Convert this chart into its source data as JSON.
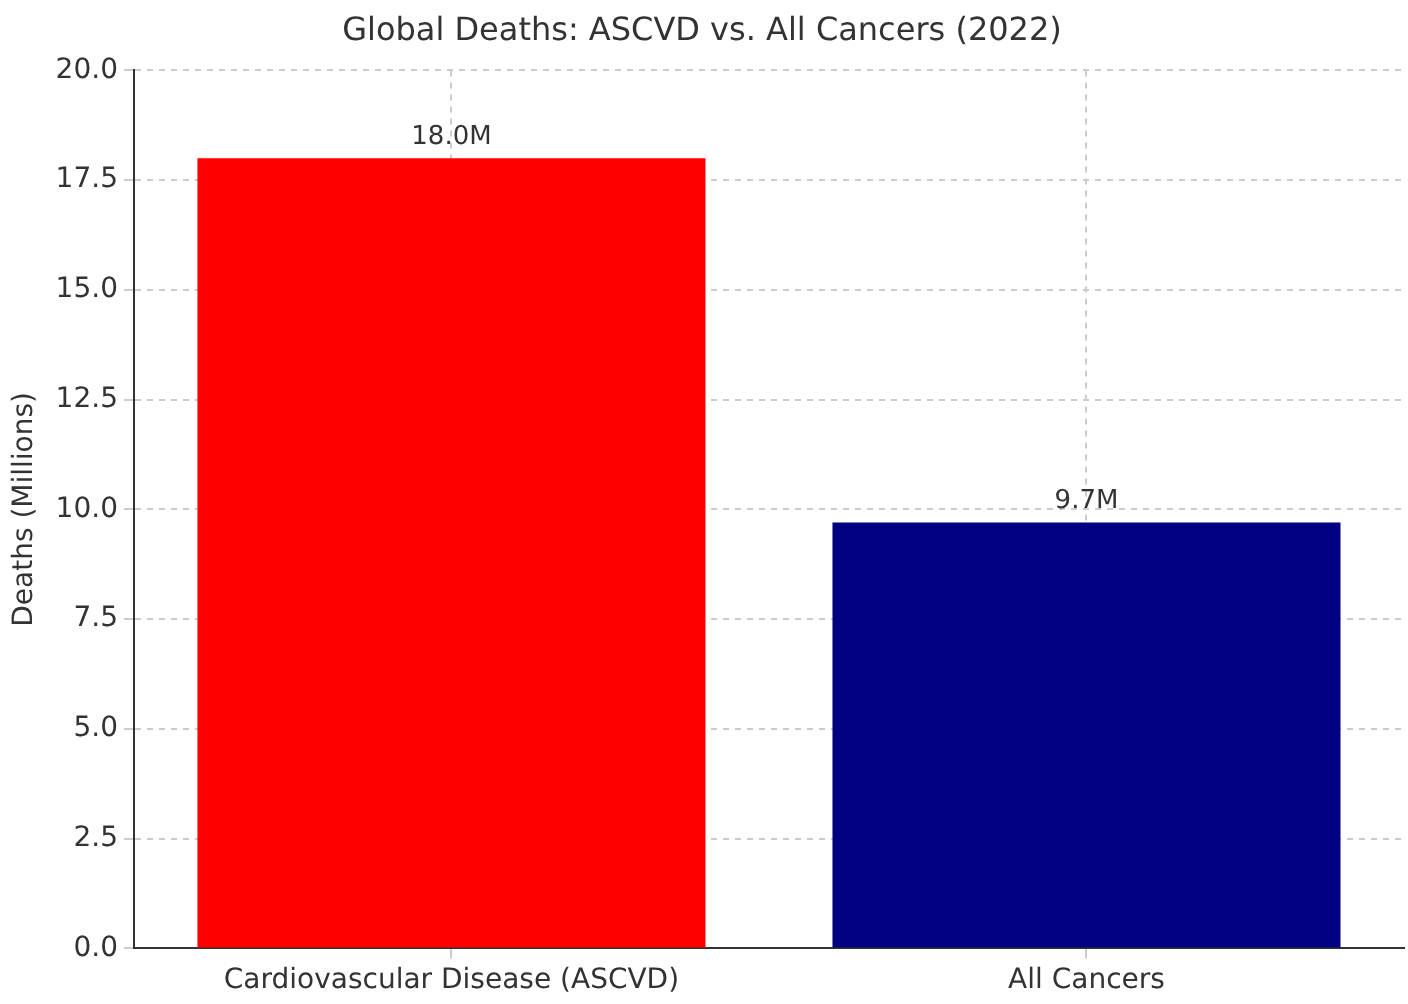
{
  "chart_data": {
    "type": "bar",
    "title": "Global Deaths: ASCVD vs. All Cancers (2022)",
    "ylabel": "Deaths (Millions)",
    "categories": [
      "Cardiovascular Disease (ASCVD)",
      "All Cancers"
    ],
    "values": [
      18.0,
      9.7
    ],
    "colors": [
      "#ff0000",
      "#000080"
    ],
    "value_labels": [
      "18.0M",
      "9.7M"
    ],
    "ylim": [
      0,
      20
    ],
    "yticks": [
      {
        "value": 0,
        "label": "0.0"
      },
      {
        "value": 2.5,
        "label": "2.5"
      },
      {
        "value": 5,
        "label": "5.0"
      },
      {
        "value": 7.5,
        "label": "7.5"
      },
      {
        "value": 10,
        "label": "10.0"
      },
      {
        "value": 12.5,
        "label": "12.5"
      },
      {
        "value": 15,
        "label": "15.0"
      },
      {
        "value": 17.5,
        "label": "17.5"
      },
      {
        "value": 20,
        "label": "20.0"
      }
    ],
    "grid": true
  }
}
